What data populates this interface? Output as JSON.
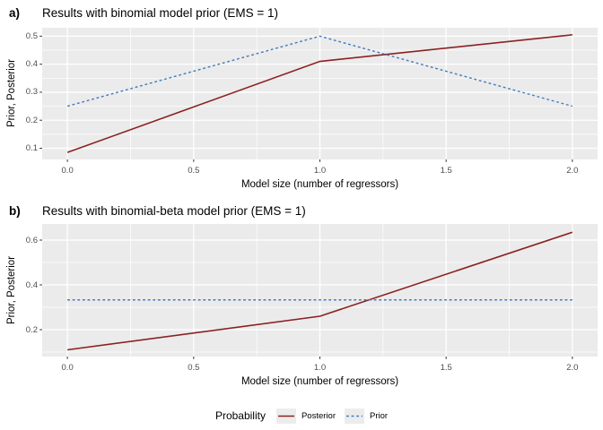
{
  "colors": {
    "background": "#FFFFFF",
    "panel_bg": "#EBEBEB",
    "grid": "#FFFFFF",
    "tick_mark": "#333333",
    "tick_label": "#4D4D4D",
    "text": "#000000",
    "posterior": "#8B2121",
    "prior": "#4379BD",
    "legend_key_bg": "#ECECEC"
  },
  "legend": {
    "title": "Probability",
    "position": "bottom",
    "items": [
      {
        "label": "Posterior",
        "line_style": "solid",
        "color": "#8B2121"
      },
      {
        "label": "Prior",
        "line_style": "dashed",
        "color": "#4379BD"
      }
    ]
  },
  "chart_data": [
    {
      "id": "a",
      "type": "line",
      "tag": "a)",
      "title": "Results with binomial model prior (EMS = 1)",
      "xlabel": "Model size (number of regressors)",
      "ylabel": "Prior, Posterior",
      "x": [
        0,
        1,
        2
      ],
      "series": [
        {
          "name": "Posterior",
          "style": "solid",
          "color": "#8B2121",
          "values": [
            0.085,
            0.41,
            0.505
          ]
        },
        {
          "name": "Prior",
          "style": "dashed",
          "color": "#4379BD",
          "values": [
            0.25,
            0.5,
            0.25
          ]
        }
      ],
      "xlim": [
        -0.1,
        2.1
      ],
      "ylim": [
        0.06,
        0.53
      ],
      "x_ticks": [
        0,
        0.5,
        1,
        1.5,
        2
      ],
      "x_tick_labels": [
        "0.0",
        "0.5",
        "1.0",
        "1.5",
        "2.0"
      ],
      "x_minor": [
        0.25,
        0.75,
        1.25,
        1.75
      ],
      "y_ticks": [
        0.1,
        0.2,
        0.3,
        0.4,
        0.5
      ],
      "y_tick_labels": [
        "0.1",
        "0.2",
        "0.3",
        "0.4",
        "0.5"
      ],
      "y_minor": [
        0.15,
        0.25,
        0.35,
        0.45
      ],
      "grid": true,
      "legend_position": "bottom"
    },
    {
      "id": "b",
      "type": "line",
      "tag": "b)",
      "title": "Results with binomial-beta model prior (EMS = 1)",
      "xlabel": "Model size (number of regressors)",
      "ylabel": "Prior, Posterior",
      "x": [
        0,
        1,
        2
      ],
      "series": [
        {
          "name": "Posterior",
          "style": "solid",
          "color": "#8B2121",
          "values": [
            0.11,
            0.26,
            0.635
          ]
        },
        {
          "name": "Prior",
          "style": "dashed",
          "color": "#4379BD",
          "values": [
            0.333,
            0.333,
            0.333
          ]
        }
      ],
      "xlim": [
        -0.1,
        2.1
      ],
      "ylim": [
        0.08,
        0.672
      ],
      "x_ticks": [
        0,
        0.5,
        1,
        1.5,
        2
      ],
      "x_tick_labels": [
        "0.0",
        "0.5",
        "1.0",
        "1.5",
        "2.0"
      ],
      "x_minor": [
        0.25,
        0.75,
        1.25,
        1.75
      ],
      "y_ticks": [
        0.2,
        0.4,
        0.6
      ],
      "y_tick_labels": [
        "0.2",
        "0.4",
        "0.6"
      ],
      "y_minor": [
        0.1,
        0.3,
        0.5
      ],
      "grid": true,
      "legend_position": "bottom"
    }
  ]
}
